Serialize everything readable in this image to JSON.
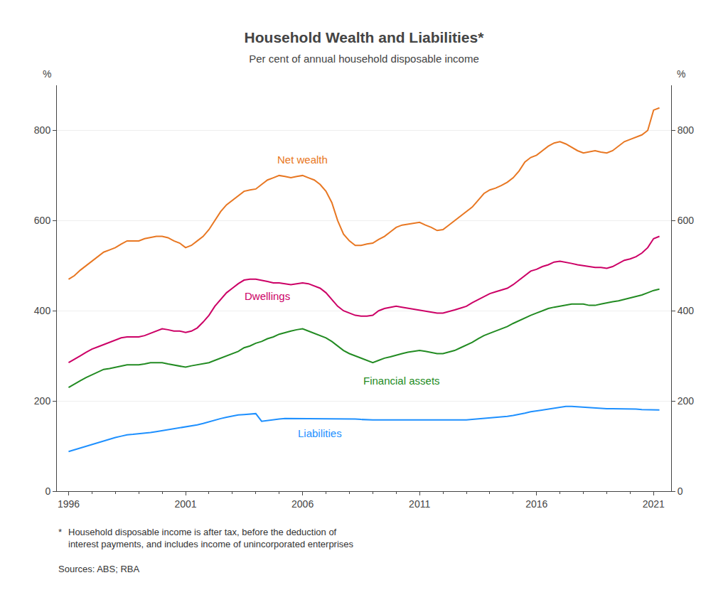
{
  "chart_data": {
    "type": "line",
    "title": "Household Wealth and Liabilities*",
    "subtitle": "Per cent of annual household disposable income",
    "ylabel_left": "%",
    "ylabel_right": "%",
    "footnote": [
      "*",
      "Household disposable income is after tax, before the deduction of\ninterest payments, and includes income of unincorporated enterprises"
    ],
    "source": "Sources: ABS; RBA",
    "xlim": [
      1995.5,
      2021.75
    ],
    "xticks": [
      1996,
      2001,
      2006,
      2011,
      2016,
      2021
    ],
    "ylim": [
      0,
      900
    ],
    "yticks": [
      0,
      200,
      400,
      600,
      800
    ],
    "grid": "y",
    "x": [
      1996.0,
      1996.25,
      1996.5,
      1996.75,
      1997.0,
      1997.25,
      1997.5,
      1997.75,
      1998.0,
      1998.25,
      1998.5,
      1998.75,
      1999.0,
      1999.25,
      1999.5,
      1999.75,
      2000.0,
      2000.25,
      2000.5,
      2000.75,
      2001.0,
      2001.25,
      2001.5,
      2001.75,
      2002.0,
      2002.25,
      2002.5,
      2002.75,
      2003.0,
      2003.25,
      2003.5,
      2003.75,
      2004.0,
      2004.25,
      2004.5,
      2004.75,
      2005.0,
      2005.25,
      2005.5,
      2005.75,
      2006.0,
      2006.25,
      2006.5,
      2006.75,
      2007.0,
      2007.25,
      2007.5,
      2007.75,
      2008.0,
      2008.25,
      2008.5,
      2008.75,
      2009.0,
      2009.25,
      2009.5,
      2009.75,
      2010.0,
      2010.25,
      2010.5,
      2010.75,
      2011.0,
      2011.25,
      2011.5,
      2011.75,
      2012.0,
      2012.25,
      2012.5,
      2012.75,
      2013.0,
      2013.25,
      2013.5,
      2013.75,
      2014.0,
      2014.25,
      2014.5,
      2014.75,
      2015.0,
      2015.25,
      2015.5,
      2015.75,
      2016.0,
      2016.25,
      2016.5,
      2016.75,
      2017.0,
      2017.25,
      2017.5,
      2017.75,
      2018.0,
      2018.25,
      2018.5,
      2018.75,
      2019.0,
      2019.25,
      2019.5,
      2019.75,
      2020.0,
      2020.25,
      2020.5,
      2020.75,
      2021.0,
      2021.25
    ],
    "series": [
      {
        "name": "Net wealth",
        "color": "#E87722",
        "values": [
          470,
          478,
          490,
          500,
          510,
          520,
          530,
          535,
          540,
          548,
          555,
          555,
          555,
          560,
          562,
          565,
          565,
          562,
          555,
          550,
          540,
          545,
          555,
          565,
          580,
          600,
          620,
          635,
          645,
          655,
          665,
          668,
          670,
          680,
          690,
          695,
          700,
          698,
          695,
          698,
          700,
          695,
          690,
          680,
          665,
          640,
          600,
          570,
          555,
          545,
          545,
          548,
          550,
          558,
          565,
          575,
          585,
          590,
          592,
          595,
          596,
          590,
          585,
          578,
          580,
          590,
          600,
          610,
          620,
          630,
          645,
          660,
          668,
          672,
          678,
          685,
          695,
          710,
          730,
          740,
          745,
          755,
          765,
          772,
          775,
          770,
          762,
          755,
          750,
          752,
          755,
          752,
          750,
          755,
          765,
          775,
          780,
          785,
          790,
          800,
          845,
          850
        ]
      },
      {
        "name": "Dwellings",
        "color": "#CC0066",
        "values": [
          285,
          292,
          300,
          308,
          315,
          320,
          325,
          330,
          335,
          340,
          342,
          342,
          342,
          345,
          350,
          355,
          360,
          358,
          355,
          355,
          352,
          355,
          362,
          375,
          390,
          410,
          425,
          440,
          450,
          460,
          468,
          470,
          470,
          468,
          465,
          462,
          462,
          460,
          458,
          460,
          462,
          460,
          455,
          450,
          440,
          425,
          410,
          400,
          395,
          390,
          388,
          388,
          390,
          400,
          405,
          408,
          410,
          408,
          406,
          404,
          402,
          400,
          398,
          395,
          395,
          398,
          402,
          406,
          410,
          418,
          425,
          432,
          438,
          442,
          446,
          450,
          458,
          468,
          478,
          488,
          492,
          498,
          502,
          508,
          510,
          508,
          505,
          502,
          500,
          498,
          496,
          496,
          494,
          498,
          505,
          512,
          515,
          520,
          528,
          540,
          560,
          565
        ]
      },
      {
        "name": "Financial assets",
        "color": "#228B22",
        "values": [
          230,
          238,
          245,
          252,
          258,
          265,
          270,
          272,
          275,
          278,
          280,
          280,
          280,
          282,
          285,
          285,
          285,
          282,
          280,
          278,
          275,
          278,
          280,
          282,
          285,
          290,
          295,
          300,
          305,
          310,
          318,
          322,
          328,
          332,
          338,
          342,
          348,
          352,
          355,
          358,
          360,
          355,
          350,
          345,
          340,
          332,
          322,
          312,
          305,
          300,
          295,
          290,
          285,
          290,
          295,
          298,
          302,
          305,
          308,
          310,
          312,
          310,
          308,
          305,
          305,
          308,
          312,
          318,
          324,
          330,
          338,
          345,
          350,
          355,
          360,
          365,
          372,
          378,
          385,
          390,
          395,
          400,
          405,
          408,
          410,
          412,
          415,
          415,
          415,
          412,
          412,
          415,
          418,
          420,
          422,
          425,
          428,
          432,
          435,
          440,
          445,
          448
        ]
      },
      {
        "name": "Liabilities",
        "color": "#1E90FF",
        "values": [
          88,
          92,
          96,
          100,
          104,
          108,
          112,
          116,
          119,
          122,
          125,
          126,
          127,
          128,
          130,
          132,
          134,
          136,
          138,
          140,
          142,
          144,
          147,
          150,
          154,
          158,
          161,
          164,
          167,
          169,
          170,
          171,
          172,
          155,
          157,
          159,
          160,
          161,
          161,
          161,
          161,
          161,
          160,
          160,
          160,
          160,
          160,
          160,
          160,
          160,
          159,
          158,
          158,
          158,
          158,
          158,
          158,
          158,
          158,
          158,
          158,
          158,
          158,
          157,
          157,
          157,
          157,
          158,
          158,
          159,
          160,
          161,
          162,
          163,
          164,
          166,
          168,
          170,
          173,
          176,
          178,
          181,
          183,
          185,
          187,
          188,
          188,
          187,
          186,
          185,
          184,
          183,
          183,
          183,
          183,
          183,
          182,
          182,
          181,
          181,
          180,
          180
        ]
      }
    ]
  }
}
